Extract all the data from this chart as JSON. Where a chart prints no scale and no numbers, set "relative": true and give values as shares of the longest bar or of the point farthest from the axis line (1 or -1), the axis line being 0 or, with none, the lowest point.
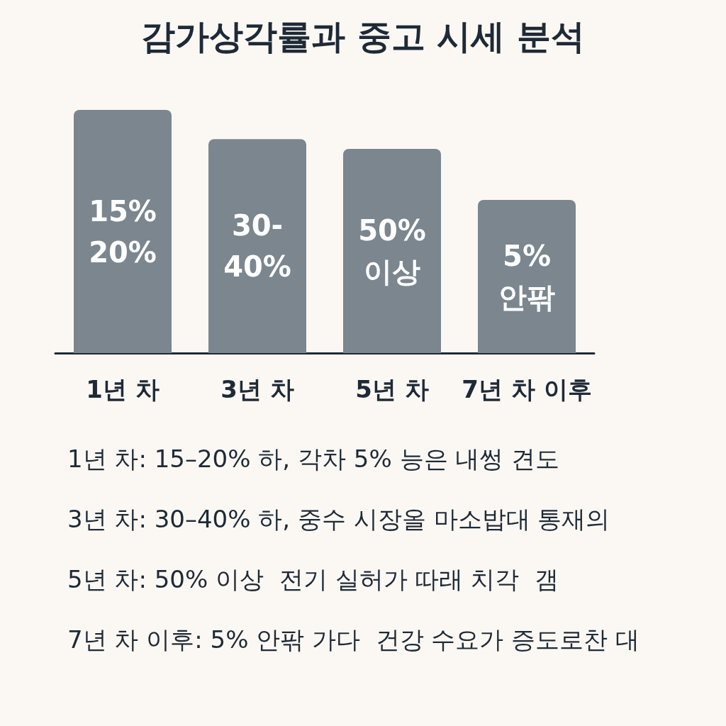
{
  "chart_data": {
    "type": "bar",
    "title": "감가상각률과 중고 시세 분석",
    "categories": [
      "1년 차",
      "3년 차",
      "5년 차",
      "7년 차 이후"
    ],
    "values": [
      1,
      0.88,
      0.84,
      0.63
    ],
    "relative": true,
    "color": "#7b868e",
    "grid": false,
    "annotations": [
      "15%\n20%",
      "30-\n40%",
      "50%\n이상",
      "5%\n안팎",
      "1년 차: 15–20% 하, 각차 5% 능은 내썽 견도",
      "3년 차: 30–40% 하, 중수 시장올 마소밥대 통재의",
      "5년 차: 50% 이상  전기 실허가 따래 치각  갬",
      "7년 차 이후: 5% 안팎 가다  건강 수요가 증도로찬 대"
    ]
  }
}
